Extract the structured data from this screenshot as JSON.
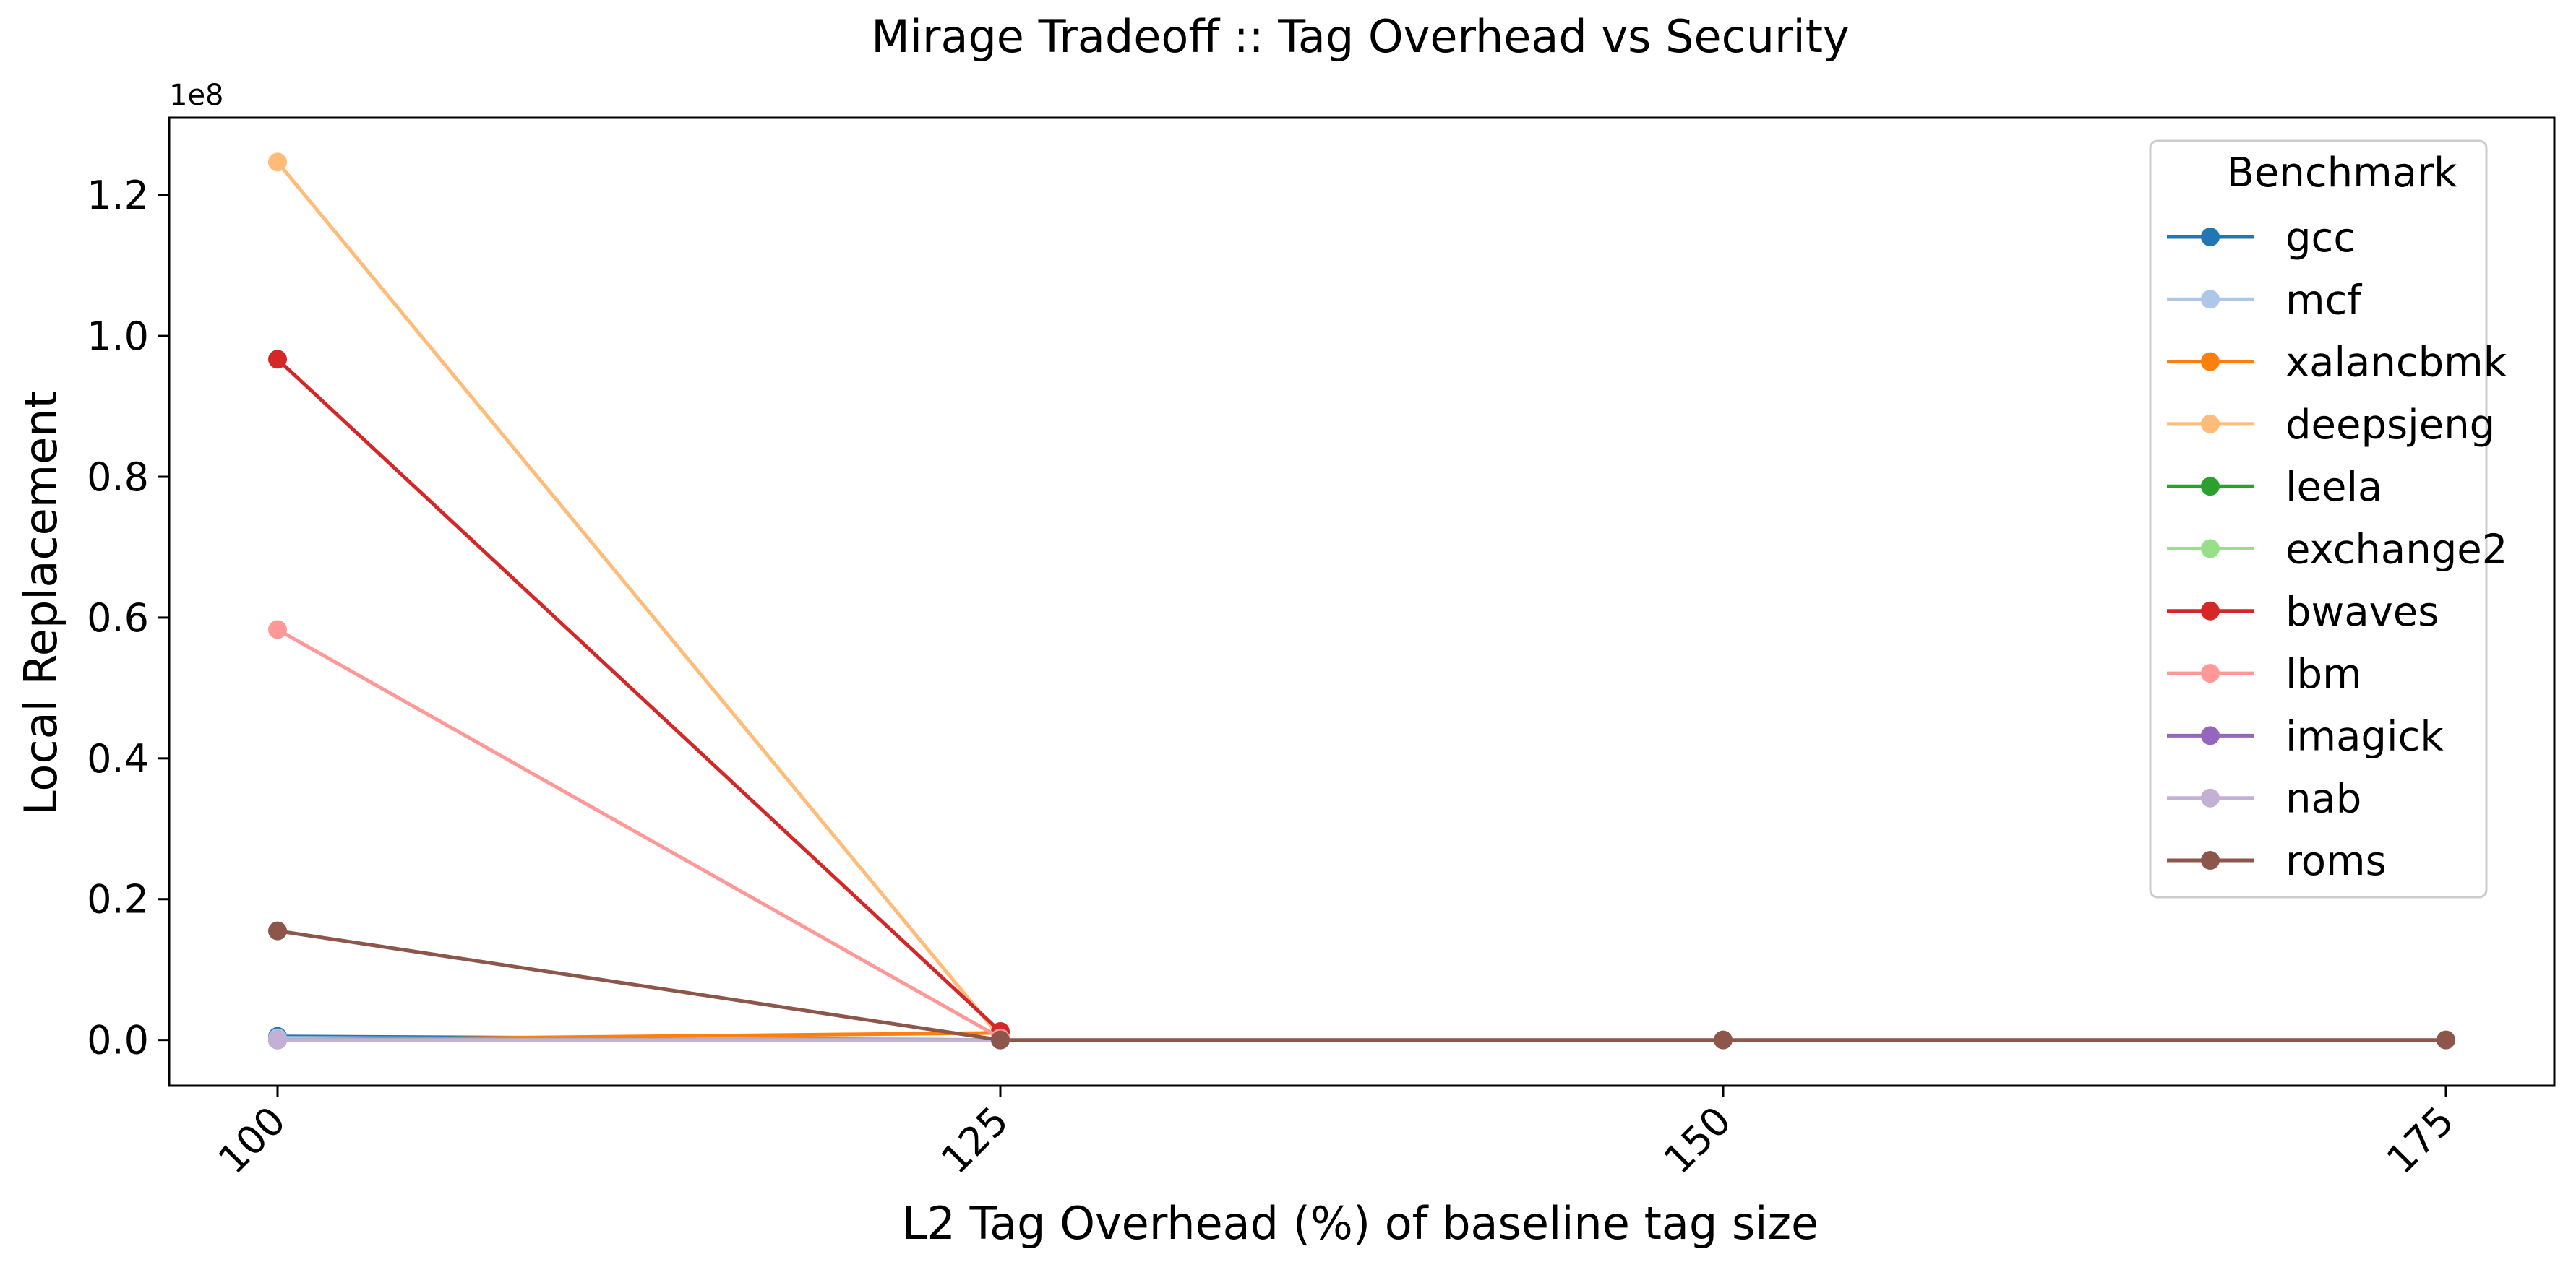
{
  "chart_data": {
    "type": "line",
    "title": "Mirage Tradeoff :: Tag Overhead vs Security",
    "xlabel": "L2 Tag Overhead (%) of baseline tag size",
    "ylabel": "Local Replacement",
    "y_offset_label": "1e8",
    "y_scale": 100000000,
    "x": [
      100,
      125,
      150,
      175
    ],
    "x_tick_labels": [
      "100",
      "125",
      "150",
      "175"
    ],
    "xlim": [
      96.25,
      178.75
    ],
    "ylim": [
      -6500000,
      131000000
    ],
    "y_ticks": [
      0,
      20000000,
      40000000,
      60000000,
      80000000,
      100000000,
      120000000
    ],
    "y_tick_labels": [
      "0.0",
      "0.2",
      "0.4",
      "0.6",
      "0.8",
      "1.0",
      "1.2"
    ],
    "grid": false,
    "legend": {
      "title": "Benchmark",
      "placement": "top-right"
    },
    "series": [
      {
        "name": "gcc",
        "color": "#1f77b4",
        "x": [
          100,
          125
        ],
        "values": [
          500000,
          0
        ]
      },
      {
        "name": "mcf",
        "color": "#aec7e8",
        "x": [
          100,
          125
        ],
        "values": [
          300000,
          0
        ]
      },
      {
        "name": "xalancbmk",
        "color": "#ff7f0e",
        "x": [
          100,
          125
        ],
        "values": [
          0,
          1000000
        ]
      },
      {
        "name": "deepsjeng",
        "color": "#ffbb78",
        "x": [
          100,
          125
        ],
        "values": [
          124700000,
          400000
        ]
      },
      {
        "name": "leela",
        "color": "#2ca02c",
        "x": [
          100,
          125
        ],
        "values": [
          0,
          0
        ]
      },
      {
        "name": "exchange2",
        "color": "#98df8a",
        "x": [
          100,
          125
        ],
        "values": [
          0,
          0
        ]
      },
      {
        "name": "bwaves",
        "color": "#d62728",
        "x": [
          100,
          125
        ],
        "values": [
          96700000,
          1200000
        ]
      },
      {
        "name": "lbm",
        "color": "#ff9896",
        "x": [
          100,
          125
        ],
        "values": [
          58300000,
          300000
        ]
      },
      {
        "name": "imagick",
        "color": "#9467bd",
        "x": [
          100,
          125
        ],
        "values": [
          0,
          0
        ]
      },
      {
        "name": "nab",
        "color": "#c5b0d5",
        "x": [
          100,
          125
        ],
        "values": [
          0,
          0
        ]
      },
      {
        "name": "roms",
        "color": "#8c564b",
        "x": [
          100,
          125,
          150,
          175
        ],
        "values": [
          15500000,
          0,
          0,
          0
        ]
      }
    ]
  }
}
